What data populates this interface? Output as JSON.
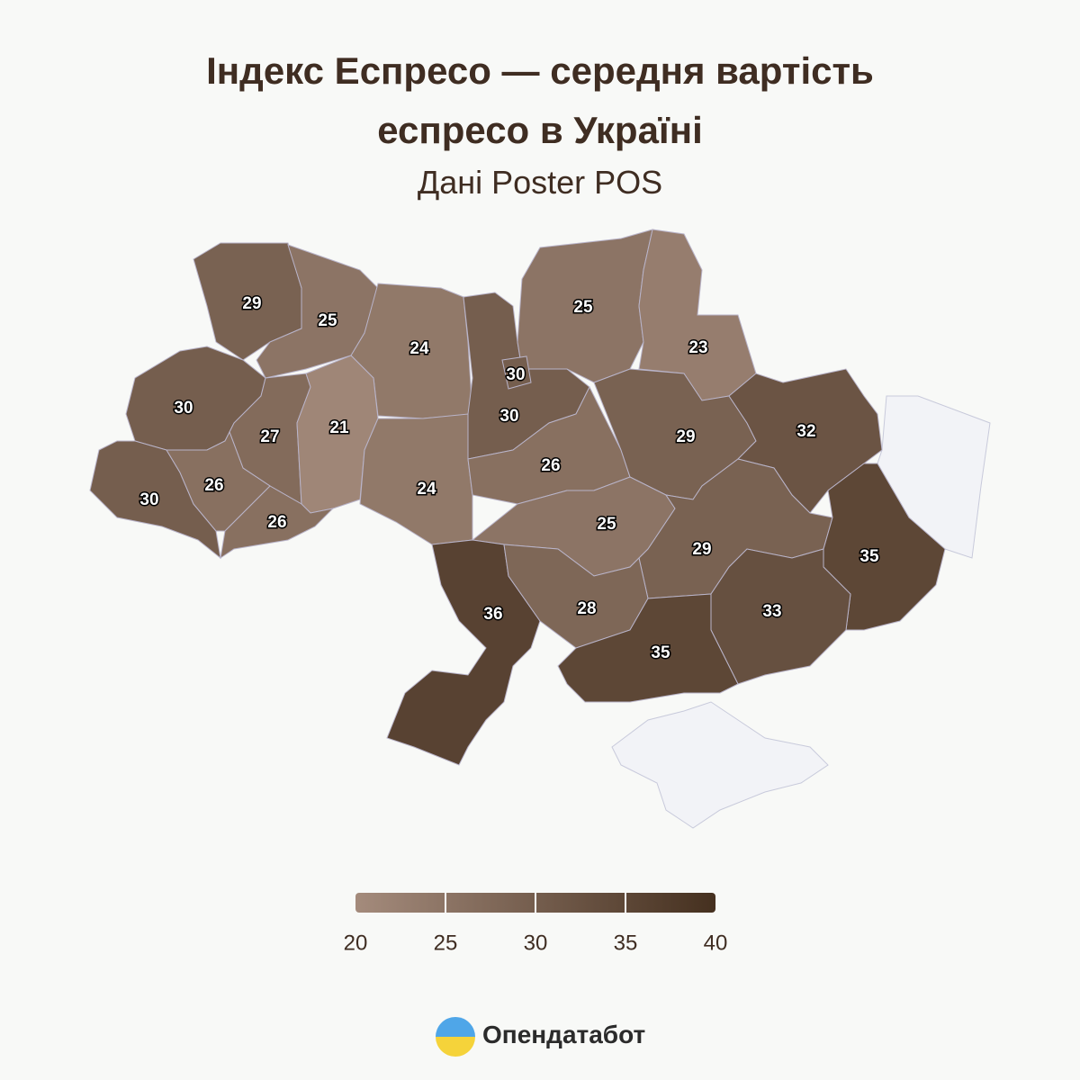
{
  "chart_data": {
    "type": "choropleth",
    "title": "Індекс Еспресо — середня вартість еспресо в Україні",
    "subtitle": "Дані Poster POS",
    "values": [
      29,
      25,
      24,
      30,
      30,
      25,
      23,
      30,
      27,
      21,
      24,
      30,
      26,
      26,
      26,
      29,
      32,
      25,
      29,
      35,
      36,
      28,
      33,
      35
    ],
    "color_range": [
      "#a48b7c",
      "#45301f"
    ],
    "scale_ticks": [
      20,
      25,
      30,
      35,
      40
    ],
    "scale_lim": [
      20,
      40
    ]
  },
  "footer": {
    "brand": "Опендатабот"
  }
}
